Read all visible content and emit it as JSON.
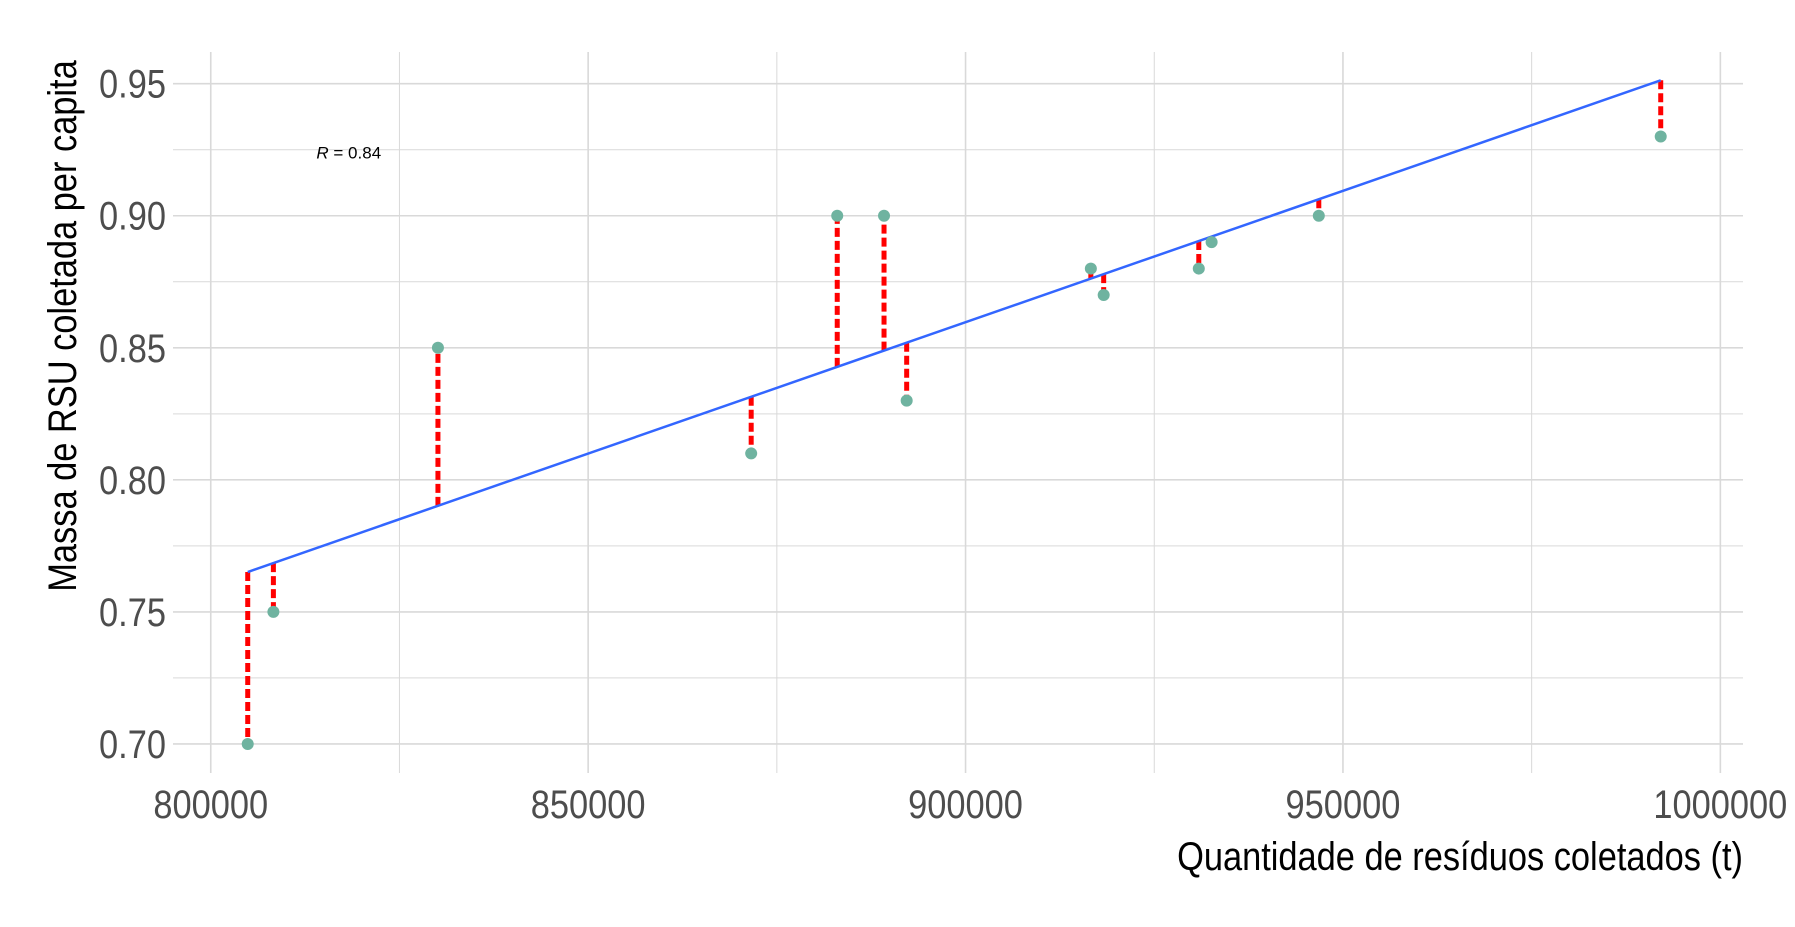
{
  "chart_data": {
    "type": "scatter",
    "xlabel": "Quantidade de resíduos coletados (t)",
    "ylabel": "Massa de RSU coletada per capita",
    "xlim": [
      795000,
      1003000
    ],
    "ylim": [
      0.689,
      0.962
    ],
    "x_ticks": [
      800000,
      850000,
      900000,
      950000,
      1000000
    ],
    "x_tick_labels": [
      "800000",
      "850000",
      "900000",
      "950000",
      "1000000"
    ],
    "y_ticks": [
      0.7,
      0.75,
      0.8,
      0.85,
      0.9,
      0.95
    ],
    "y_tick_labels": [
      "0.70",
      "0.75",
      "0.80",
      "0.85",
      "0.90",
      "0.95"
    ],
    "grid": true,
    "points": [
      {
        "x": 804900,
        "y": 0.7
      },
      {
        "x": 808300,
        "y": 0.75
      },
      {
        "x": 830100,
        "y": 0.85
      },
      {
        "x": 871600,
        "y": 0.81
      },
      {
        "x": 883000,
        "y": 0.9
      },
      {
        "x": 889200,
        "y": 0.9
      },
      {
        "x": 892200,
        "y": 0.83
      },
      {
        "x": 916600,
        "y": 0.88
      },
      {
        "x": 918300,
        "y": 0.87
      },
      {
        "x": 930900,
        "y": 0.88
      },
      {
        "x": 932600,
        "y": 0.89
      },
      {
        "x": 946800,
        "y": 0.9
      },
      {
        "x": 992100,
        "y": 0.93
      }
    ],
    "regression_line": {
      "x": [
        804900,
        992100
      ],
      "y": [
        0.7651,
        0.9513
      ]
    },
    "annotation": {
      "italic": "R",
      "text": " = 0.84",
      "x": 814000,
      "y": 0.924
    },
    "colors": {
      "points": "#6fb3a0",
      "line": "#3366ff",
      "residuals": "#ff0000",
      "grid": "#d9d9d9"
    }
  }
}
